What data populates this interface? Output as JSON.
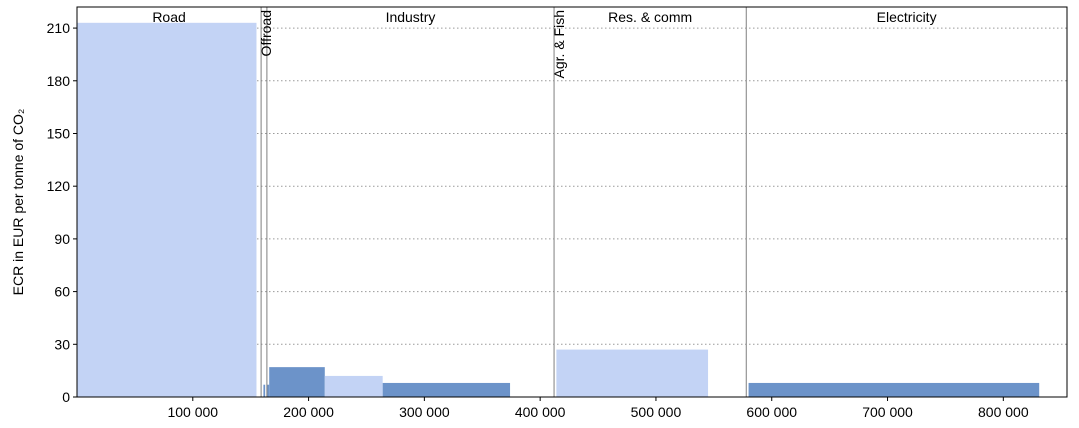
{
  "chart_data": {
    "type": "bar",
    "subtype": "variable-width bar chart grouped by sector",
    "ylabel": "ECR in EUR per tonne of CO₂",
    "xlim": [
      0,
      855000
    ],
    "ylim": [
      0,
      222
    ],
    "y_ticks": [
      "0",
      "30",
      "60",
      "90",
      "120",
      "150",
      "180",
      "210"
    ],
    "y_tick_values": [
      0,
      30,
      60,
      90,
      120,
      150,
      180,
      210
    ],
    "x_ticks": [
      "100 000",
      "200 000",
      "300 000",
      "400 000",
      "500 000",
      "600 000",
      "700 000",
      "800 000"
    ],
    "x_tick_values": [
      100000,
      200000,
      300000,
      400000,
      500000,
      600000,
      700000,
      800000
    ],
    "grid": "horizontal dotted",
    "sectors": [
      {
        "label": "Road",
        "start": 0,
        "end": 159000,
        "orientation": "horizontal"
      },
      {
        "label": "Offroad",
        "start": 159000,
        "end": 164000,
        "orientation": "vertical"
      },
      {
        "label": "Industry",
        "start": 164000,
        "end": 412000,
        "orientation": "horizontal"
      },
      {
        "label": "Agr. & Fish",
        "start": 412000,
        "end": 578000,
        "orientation": "vertical"
      },
      {
        "label": "Res. & comm",
        "start": 412000,
        "end": 578000,
        "orientation": "horizontal"
      },
      {
        "label": "Electricity",
        "start": 578000,
        "end": 855000,
        "orientation": "horizontal"
      }
    ],
    "bars": [
      {
        "x0": 0,
        "x1": 155000,
        "value": 213,
        "shade": "light"
      },
      {
        "x0": 161000,
        "x1": 162500,
        "value": 7,
        "shade": "dark"
      },
      {
        "x0": 164000,
        "x1": 166000,
        "value": 7,
        "shade": "dark"
      },
      {
        "x0": 166000,
        "x1": 214000,
        "value": 17,
        "shade": "dark"
      },
      {
        "x0": 214000,
        "x1": 264000,
        "value": 12,
        "shade": "light"
      },
      {
        "x0": 264000,
        "x1": 374000,
        "value": 8,
        "shade": "dark"
      },
      {
        "x0": 414000,
        "x1": 545000,
        "value": 27,
        "shade": "light"
      },
      {
        "x0": 580000,
        "x1": 831000,
        "value": 8,
        "shade": "dark"
      }
    ],
    "colors": {
      "light": "#c3d3f5",
      "dark": "#6c93c9"
    }
  }
}
